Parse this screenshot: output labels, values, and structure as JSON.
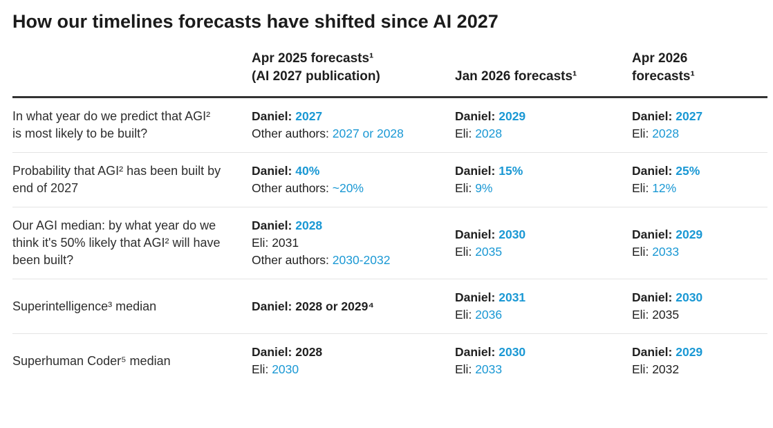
{
  "page": {
    "title": "How our timelines forecasts have shifted since AI 2027"
  },
  "colors": {
    "accent_blue": "#1a98d4",
    "text_dark": "#212121",
    "header_rule": "#333333",
    "row_rule": "#e4e4e4"
  },
  "table": {
    "columns": [
      {
        "line1": "Apr 2025 forecasts¹",
        "line2": "(AI 2027 publication)"
      },
      {
        "line1": "Jan 2026 forecasts¹",
        "line2": ""
      },
      {
        "line1": "Apr 2026",
        "line2": "forecasts¹"
      }
    ],
    "rows": [
      {
        "question": "In what year do we predict that AGI² is most likely to be built?",
        "cells": [
          {
            "lines": [
              {
                "label": "Daniel:",
                "value": "2027",
                "bold": true,
                "value_blue": true
              },
              {
                "label": "Other authors:",
                "value": "2027 or 2028",
                "bold": false,
                "value_blue": true
              }
            ]
          },
          {
            "lines": [
              {
                "label": "Daniel:",
                "value": "2029",
                "bold": true,
                "value_blue": true
              },
              {
                "label": "Eli:",
                "value": "2028",
                "bold": false,
                "value_blue": true
              }
            ]
          },
          {
            "lines": [
              {
                "label": "Daniel:",
                "value": "2027",
                "bold": true,
                "value_blue": true
              },
              {
                "label": "Eli:",
                "value": "2028",
                "bold": false,
                "value_blue": true
              }
            ]
          }
        ]
      },
      {
        "question": "Probability that AGI² has been built by end of 2027",
        "cells": [
          {
            "lines": [
              {
                "label": "Daniel:",
                "value": "40%",
                "bold": true,
                "value_blue": true
              },
              {
                "label": "Other authors:",
                "value": "~20%",
                "bold": false,
                "value_blue": true
              }
            ]
          },
          {
            "lines": [
              {
                "label": "Daniel:",
                "value": "15%",
                "bold": true,
                "value_blue": true
              },
              {
                "label": "Eli:",
                "value": "9%",
                "bold": false,
                "value_blue": true
              }
            ]
          },
          {
            "lines": [
              {
                "label": "Daniel:",
                "value": "25%",
                "bold": true,
                "value_blue": true
              },
              {
                "label": "Eli:",
                "value": "12%",
                "bold": false,
                "value_blue": true
              }
            ]
          }
        ]
      },
      {
        "question": "Our AGI median: by what year do we think it's 50% likely that AGI² will have been built?",
        "cells": [
          {
            "lines": [
              {
                "label": "Daniel:",
                "value": "2028",
                "bold": true,
                "value_blue": true
              },
              {
                "label": "Eli:",
                "value": "2031",
                "bold": false,
                "value_blue": false
              },
              {
                "label": "Other authors:",
                "value": "2030-2032",
                "bold": false,
                "value_blue": true
              }
            ]
          },
          {
            "lines": [
              {
                "label": "Daniel:",
                "value": "2030",
                "bold": true,
                "value_blue": true
              },
              {
                "label": "Eli:",
                "value": "2035",
                "bold": false,
                "value_blue": true
              }
            ]
          },
          {
            "lines": [
              {
                "label": "Daniel:",
                "value": "2029",
                "bold": true,
                "value_blue": true
              },
              {
                "label": "Eli:",
                "value": "2033",
                "bold": false,
                "value_blue": true
              }
            ]
          }
        ]
      },
      {
        "question": "Superintelligence³ median",
        "cells": [
          {
            "lines": [
              {
                "label": "Daniel:",
                "value": "2028 or 2029⁴",
                "bold": true,
                "value_blue": false
              }
            ]
          },
          {
            "lines": [
              {
                "label": "Daniel:",
                "value": "2031",
                "bold": true,
                "value_blue": true
              },
              {
                "label": "Eli:",
                "value": "2036",
                "bold": false,
                "value_blue": true
              }
            ]
          },
          {
            "lines": [
              {
                "label": "Daniel:",
                "value": "2030",
                "bold": true,
                "value_blue": true
              },
              {
                "label": "Eli:",
                "value": "2035",
                "bold": false,
                "value_blue": false
              }
            ]
          }
        ]
      },
      {
        "question": "Superhuman Coder⁵ median",
        "cells": [
          {
            "lines": [
              {
                "label": "Daniel:",
                "value": "2028",
                "bold": true,
                "value_blue": false
              },
              {
                "label": "Eli:",
                "value": "2030",
                "bold": false,
                "value_blue": true
              }
            ]
          },
          {
            "lines": [
              {
                "label": "Daniel:",
                "value": "2030",
                "bold": true,
                "value_blue": true
              },
              {
                "label": "Eli:",
                "value": "2033",
                "bold": false,
                "value_blue": true
              }
            ]
          },
          {
            "lines": [
              {
                "label": "Daniel:",
                "value": "2029",
                "bold": true,
                "value_blue": true
              },
              {
                "label": "Eli:",
                "value": "2032",
                "bold": false,
                "value_blue": false
              }
            ]
          }
        ]
      }
    ]
  }
}
